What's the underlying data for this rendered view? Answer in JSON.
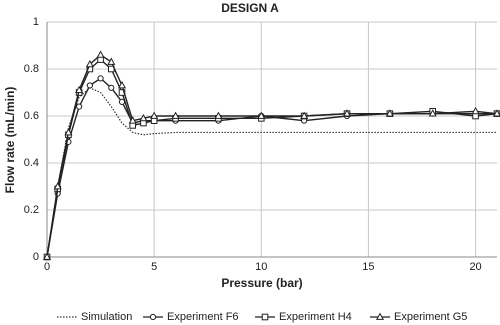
{
  "chart_data": {
    "type": "line",
    "title": "DESIGN A",
    "x_label": "Pressure (bar)",
    "y_label": "Flow rate (mL/min)",
    "x": [
      0,
      0.5,
      1,
      1.5,
      2,
      2.5,
      3,
      3.5,
      4,
      4.5,
      5,
      6,
      8,
      10,
      12,
      14,
      16,
      18,
      20,
      21
    ],
    "series": [
      {
        "name": "Simulation",
        "color": "#333333",
        "marker": "none",
        "dash": true,
        "values": [
          0,
          0.3,
          0.55,
          0.68,
          0.72,
          0.7,
          0.64,
          0.57,
          0.53,
          0.52,
          0.525,
          0.53,
          0.53,
          0.53,
          0.53,
          0.53,
          0.53,
          0.53,
          0.53,
          0.53
        ]
      },
      {
        "name": "Experiment F6",
        "color": "#222222",
        "marker": "circle",
        "values": [
          0,
          0.27,
          0.49,
          0.64,
          0.73,
          0.76,
          0.72,
          0.66,
          0.57,
          0.58,
          0.58,
          0.58,
          0.58,
          0.6,
          0.58,
          0.6,
          0.61,
          0.61,
          0.61,
          0.61
        ]
      },
      {
        "name": "Experiment H4",
        "color": "#222222",
        "marker": "square",
        "values": [
          0,
          0.29,
          0.52,
          0.7,
          0.8,
          0.84,
          0.8,
          0.7,
          0.56,
          0.57,
          0.58,
          0.59,
          0.59,
          0.59,
          0.6,
          0.61,
          0.61,
          0.62,
          0.6,
          0.61
        ]
      },
      {
        "name": "Experiment G5",
        "color": "#222222",
        "marker": "triangle",
        "values": [
          0,
          0.3,
          0.53,
          0.71,
          0.82,
          0.86,
          0.83,
          0.73,
          0.58,
          0.59,
          0.6,
          0.6,
          0.6,
          0.6,
          0.6,
          0.61,
          0.61,
          0.61,
          0.62,
          0.61
        ]
      }
    ],
    "xlim": [
      0,
      21
    ],
    "xticks": [
      0,
      5,
      10,
      15,
      20
    ],
    "ylim": [
      0,
      1
    ],
    "yticks": [
      0,
      0.2,
      0.4,
      0.6,
      0.8,
      1
    ],
    "grid": true,
    "legend": "bottom"
  }
}
